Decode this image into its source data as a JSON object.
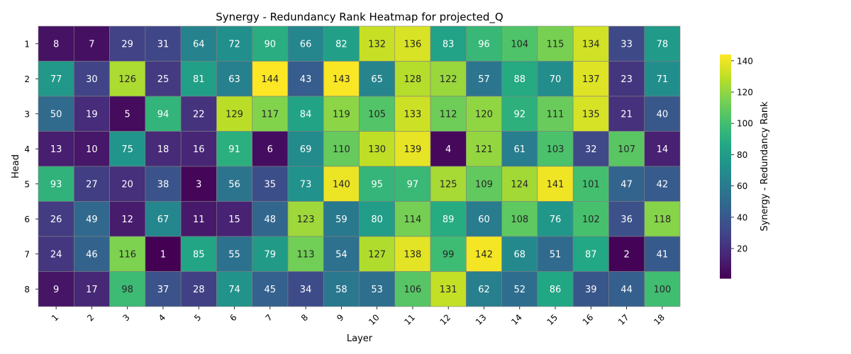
{
  "chart_data": {
    "type": "heatmap",
    "title": "Synergy - Redundancy Rank Heatmap for projected_Q",
    "xlabel": "Layer",
    "ylabel": "Head",
    "x_categories": [
      "1",
      "2",
      "3",
      "4",
      "5",
      "6",
      "7",
      "8",
      "9",
      "10",
      "11",
      "12",
      "13",
      "14",
      "15",
      "16",
      "17",
      "18"
    ],
    "y_categories": [
      "1",
      "2",
      "3",
      "4",
      "5",
      "6",
      "7",
      "8"
    ],
    "values": [
      [
        8,
        7,
        29,
        31,
        64,
        72,
        90,
        66,
        82,
        132,
        136,
        83,
        96,
        104,
        115,
        134,
        33,
        78
      ],
      [
        77,
        30,
        126,
        25,
        81,
        63,
        144,
        43,
        143,
        65,
        128,
        122,
        57,
        88,
        70,
        137,
        23,
        71
      ],
      [
        50,
        19,
        5,
        94,
        22,
        129,
        117,
        84,
        119,
        105,
        133,
        112,
        120,
        92,
        111,
        135,
        21,
        40
      ],
      [
        13,
        10,
        75,
        18,
        16,
        91,
        6,
        69,
        110,
        130,
        139,
        4,
        121,
        61,
        103,
        32,
        107,
        14
      ],
      [
        93,
        27,
        20,
        38,
        3,
        56,
        35,
        73,
        140,
        95,
        97,
        125,
        109,
        124,
        141,
        101,
        47,
        42
      ],
      [
        26,
        49,
        12,
        67,
        11,
        15,
        48,
        123,
        59,
        80,
        114,
        89,
        60,
        108,
        76,
        102,
        36,
        118
      ],
      [
        24,
        46,
        116,
        1,
        85,
        55,
        79,
        113,
        54,
        127,
        138,
        99,
        142,
        68,
        51,
        87,
        2,
        41
      ],
      [
        9,
        17,
        98,
        37,
        28,
        74,
        45,
        34,
        58,
        53,
        106,
        131,
        62,
        52,
        86,
        39,
        44,
        100
      ]
    ],
    "vmin": 1,
    "vmax": 144,
    "colormap": "viridis",
    "colorbar": {
      "label": "Synergy - Redundancy Rank",
      "ticks": [
        20,
        40,
        60,
        80,
        100,
        120,
        140
      ]
    },
    "annotate": true,
    "grid_line_color": "#808080"
  }
}
